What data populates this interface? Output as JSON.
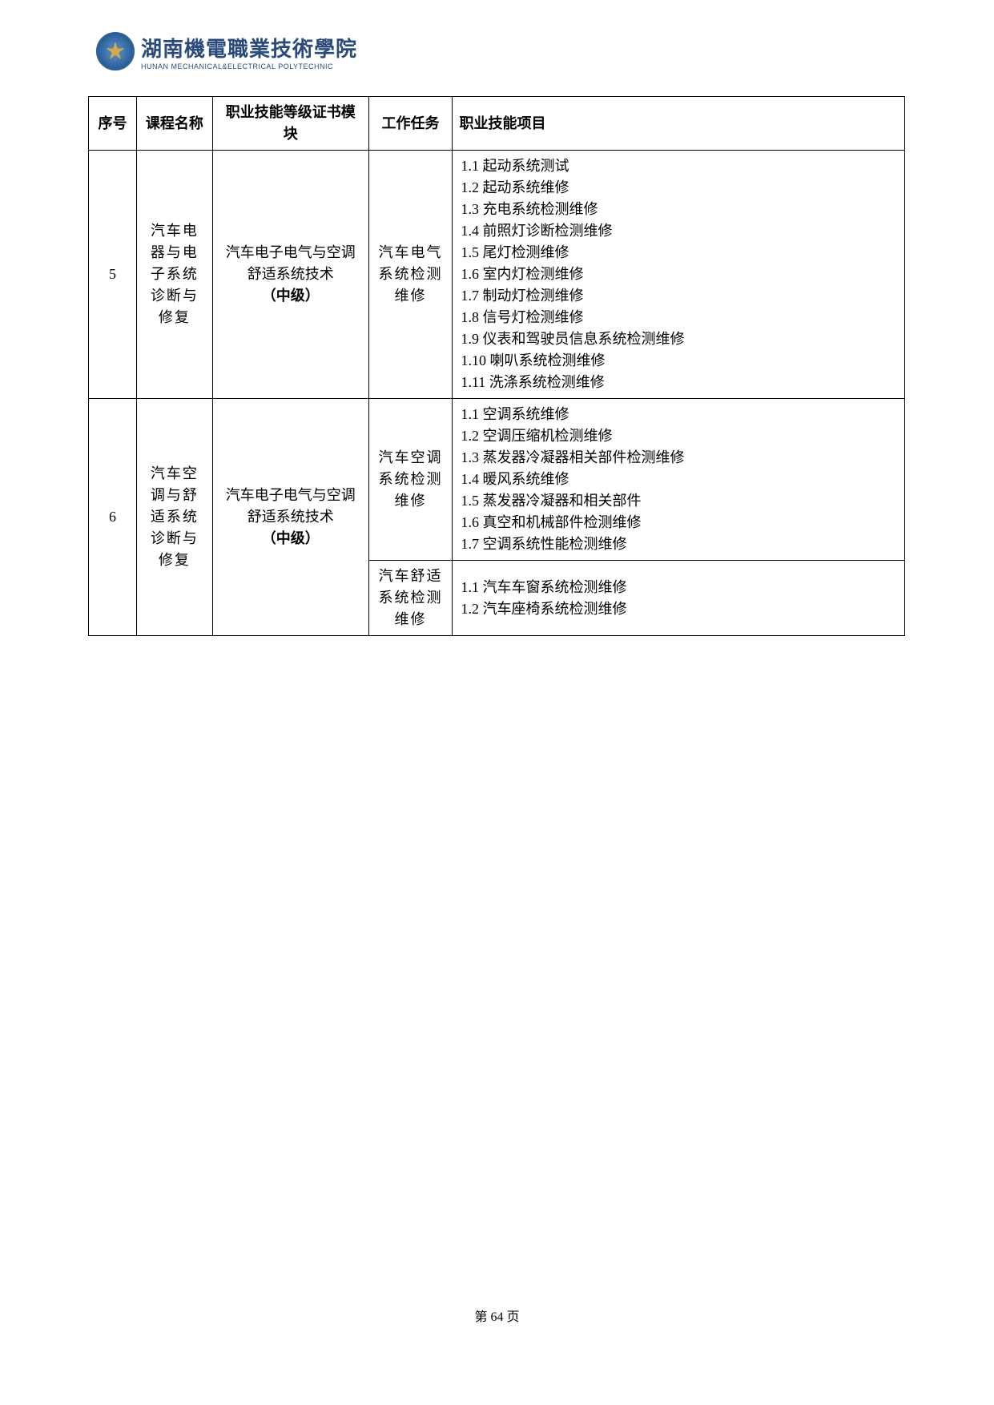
{
  "header": {
    "cn": "湖南機電職業技術學院",
    "en": "HUNAN MECHANICAL&ELECTRICAL POLYTECHNIC"
  },
  "table": {
    "headers": {
      "seq": "序号",
      "course": "课程名称",
      "module": "职业技能等级证书模块",
      "task": "工作任务",
      "items": "职业技能项目"
    },
    "rows": [
      {
        "seq": "5",
        "course": "汽车电器与电子系统诊断与修复",
        "module_pre": "汽车电子电气与空调舒适系统技术",
        "module_bold": "（中级）",
        "task": "汽车电气系统检测维修",
        "items": [
          "1.1  起动系统测试",
          "1.2  起动系统维修",
          "1.3  充电系统检测维修",
          "1.4  前照灯诊断检测维修",
          "1.5  尾灯检测维修",
          "1.6  室内灯检测维修",
          "1.7  制动灯检测维修",
          "1.8  信号灯检测维修",
          "1.9 仪表和驾驶员信息系统检测维修",
          "1.10  喇叭系统检测维修",
          "1.11  洗涤系统检测维修"
        ]
      },
      {
        "seq": "6",
        "course": "汽车空调与舒适系统诊断与修复",
        "module_pre": "汽车电子电气与空调舒适系统技术",
        "module_bold": "（中级）",
        "tasks": [
          {
            "task": "汽车空调系统检测维修",
            "items": [
              "1.1  空调系统维修",
              "1.2  空调压缩机检测维修",
              "1.3  蒸发器冷凝器相关部件检测维修",
              "1.4  暖风系统维修",
              "1.5  蒸发器冷凝器和相关部件",
              "1.6  真空和机械部件检测维修",
              "1.7  空调系统性能检测维修"
            ]
          },
          {
            "task": "汽车舒适系统检测维修",
            "items": [
              "1.1  汽车车窗系统检测维修",
              "1.2  汽车座椅系统检测维修"
            ]
          }
        ]
      }
    ]
  },
  "footer": {
    "page_pre": "第 ",
    "page_num": "64",
    "page_post": " 页"
  }
}
